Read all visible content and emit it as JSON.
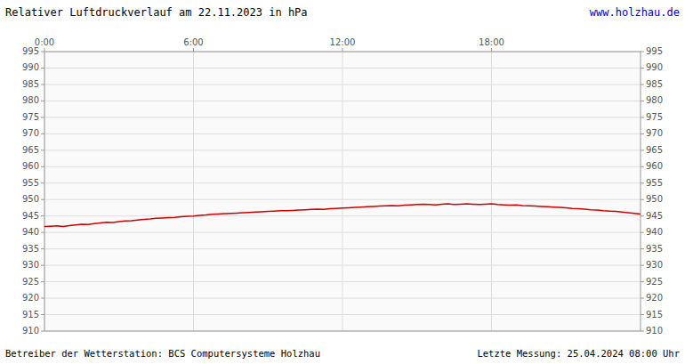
{
  "chart_data": {
    "type": "line",
    "title": "Relativer Luftdruckverlauf am 22.11.2023 in hPa",
    "annotations": [
      "www.holzhau.de",
      "Betreiber der Wetterstation: BCS Computersysteme Holzhau",
      "Letzte Messung: 25.04.2024 08:00 Uhr"
    ],
    "x": [
      0.0,
      0.25,
      0.5,
      0.75,
      1.0,
      1.25,
      1.5,
      1.75,
      2.0,
      2.25,
      2.5,
      2.75,
      3.0,
      3.25,
      3.5,
      3.75,
      4.0,
      4.25,
      4.5,
      4.75,
      5.0,
      5.25,
      5.5,
      5.75,
      6.0,
      6.25,
      6.5,
      6.75,
      7.0,
      7.25,
      7.5,
      7.75,
      8.0,
      8.25,
      8.5,
      8.75,
      9.0,
      9.25,
      9.5,
      9.75,
      10.0,
      10.25,
      10.5,
      10.75,
      11.0,
      11.25,
      11.5,
      11.75,
      12.0,
      12.25,
      12.5,
      12.75,
      13.0,
      13.25,
      13.5,
      13.75,
      14.0,
      14.25,
      14.5,
      14.75,
      15.0,
      15.25,
      15.5,
      15.75,
      16.0,
      16.25,
      16.5,
      16.75,
      17.0,
      17.25,
      17.5,
      17.75,
      18.0,
      18.25,
      18.5,
      18.75,
      19.0,
      19.25,
      19.5,
      19.75,
      20.0,
      20.25,
      20.5,
      20.75,
      21.0,
      21.25,
      21.5,
      21.75,
      22.0,
      22.25,
      22.5,
      22.75,
      23.0,
      23.25,
      23.5,
      23.75,
      24.0
    ],
    "values": [
      941.8,
      941.9,
      942.0,
      941.8,
      942.1,
      942.3,
      942.5,
      942.4,
      942.7,
      942.9,
      943.1,
      943.0,
      943.3,
      943.5,
      943.6,
      943.8,
      944.0,
      944.1,
      944.3,
      944.4,
      944.5,
      944.6,
      944.8,
      944.9,
      945.0,
      945.2,
      945.3,
      945.5,
      945.6,
      945.7,
      945.8,
      945.9,
      946.0,
      946.1,
      946.2,
      946.3,
      946.4,
      946.5,
      946.6,
      946.6,
      946.7,
      946.8,
      946.9,
      947.0,
      947.1,
      947.0,
      947.2,
      947.3,
      947.4,
      947.5,
      947.6,
      947.7,
      947.8,
      947.9,
      948.0,
      948.1,
      948.2,
      948.1,
      948.3,
      948.4,
      948.5,
      948.6,
      948.5,
      948.4,
      948.6,
      948.7,
      948.5,
      948.6,
      948.7,
      948.6,
      948.5,
      948.6,
      948.7,
      948.5,
      948.4,
      948.3,
      948.4,
      948.2,
      948.1,
      948.0,
      947.9,
      947.8,
      947.7,
      947.6,
      947.5,
      947.3,
      947.2,
      947.1,
      946.9,
      946.8,
      946.6,
      946.5,
      946.4,
      946.2,
      946.0,
      945.8,
      945.6
    ],
    "color": "#cc0000",
    "xlim": [
      0,
      24
    ],
    "xticks": [
      {
        "value": 0,
        "label": "0:00"
      },
      {
        "value": 6,
        "label": "6:00"
      },
      {
        "value": 12,
        "label": "12:00"
      },
      {
        "value": 18,
        "label": "18:00"
      }
    ],
    "ylim": [
      910,
      995
    ],
    "yticks": [
      910,
      915,
      920,
      925,
      930,
      935,
      940,
      945,
      950,
      955,
      960,
      965,
      970,
      975,
      980,
      985,
      990,
      995
    ],
    "y2lim": [
      910,
      995
    ],
    "y2ticks": [
      910,
      915,
      920,
      925,
      930,
      935,
      940,
      945,
      950,
      955,
      960,
      965,
      970,
      975,
      980,
      985,
      990,
      995
    ],
    "grid": true
  }
}
